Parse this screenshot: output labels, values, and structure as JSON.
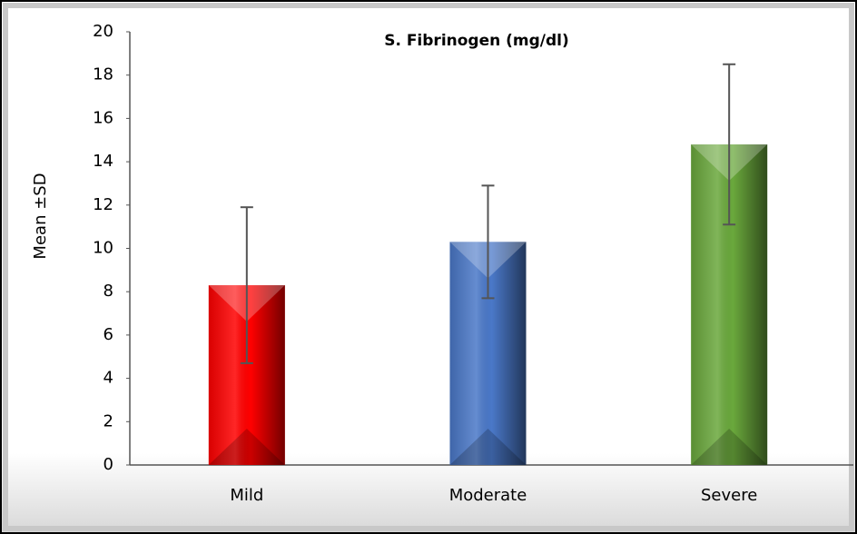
{
  "chart_data": {
    "type": "bar",
    "title": "S. Fibrinogen (mg/dl)",
    "y_label": "Mean ±SD",
    "categories": [
      "Mild",
      "Moderate",
      "Severe"
    ],
    "values": [
      8.3,
      10.3,
      14.8
    ],
    "errors": [
      3.6,
      2.6,
      3.7
    ],
    "colors": [
      "#ff0000",
      "#4a78c8",
      "#6aa83c"
    ],
    "ylim": [
      0,
      20
    ],
    "yticks": [
      0,
      2,
      4,
      6,
      8,
      10,
      12,
      14,
      16,
      18,
      20
    ]
  }
}
